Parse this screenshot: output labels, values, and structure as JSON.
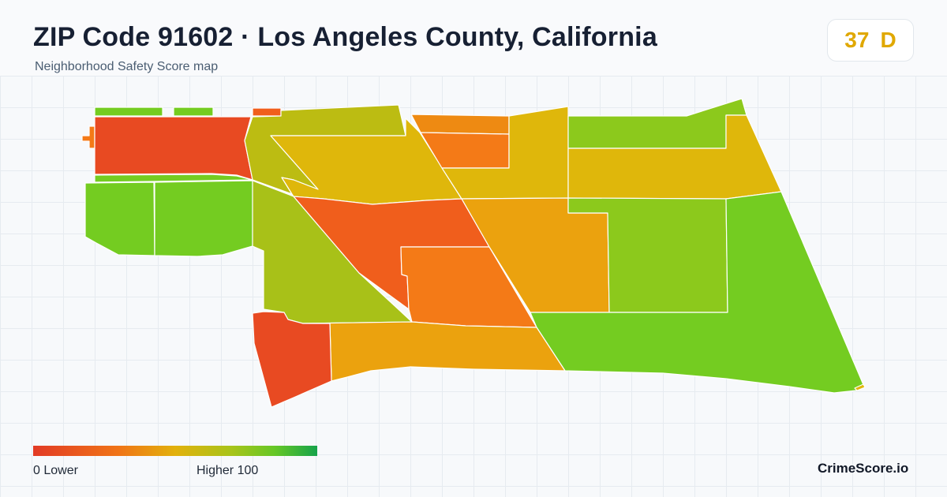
{
  "header": {
    "title": "ZIP Code 91602 · Los Angeles County, California",
    "subtitle": "Neighborhood Safety Score map"
  },
  "score_badge": {
    "score": "37",
    "grade": "D",
    "color": "#e0a800"
  },
  "legend": {
    "low_label": "0  Lower",
    "high_label": "Higher  100",
    "min": 0,
    "max": 100
  },
  "brand": "CrimeScore.io",
  "colors": {
    "red": "#e84a22",
    "red_orange": "#f05e1c",
    "orange": "#f47a17",
    "orange_dark": "#ee8a12",
    "amber": "#eba20e",
    "gold": "#dfb70b",
    "yellow_green": "#bcbc12",
    "olive_green": "#a8c118",
    "green": "#8cc91c",
    "bright_green": "#74cc21"
  }
}
